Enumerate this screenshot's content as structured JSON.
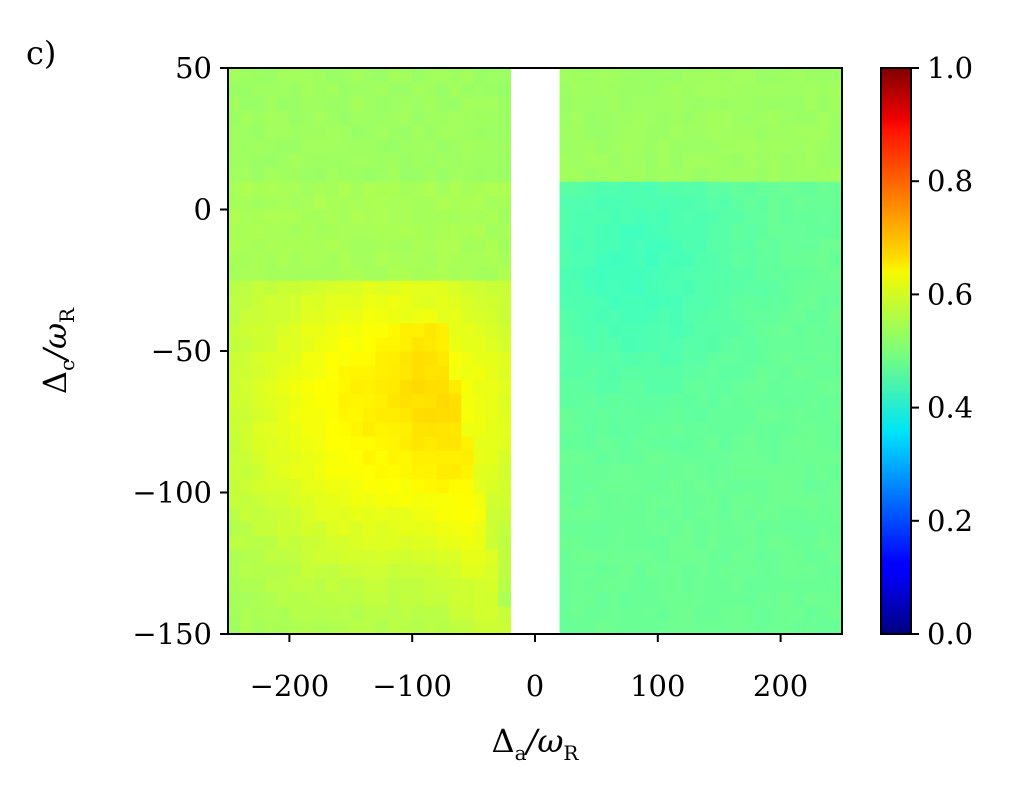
{
  "panel_label": "c)",
  "chart_data": {
    "type": "heatmap",
    "xlabel": {
      "main": "Δ",
      "sub1": "a",
      "mid": "/ω",
      "sub2": "R"
    },
    "ylabel": {
      "main": "Δ",
      "sub1": "c",
      "mid": "/ω",
      "sub2": "R"
    },
    "xlim": [
      -250,
      250
    ],
    "ylim": [
      -150,
      50
    ],
    "xticks": [
      {
        "value": -200,
        "label": "−200"
      },
      {
        "value": -100,
        "label": "−100"
      },
      {
        "value": 0,
        "label": "0"
      },
      {
        "value": 100,
        "label": "100"
      },
      {
        "value": 200,
        "label": "200"
      }
    ],
    "yticks": [
      {
        "value": 50,
        "label": "50"
      },
      {
        "value": 0,
        "label": "0"
      },
      {
        "value": -50,
        "label": "−50"
      },
      {
        "value": -100,
        "label": "−100"
      },
      {
        "value": -150,
        "label": "−150"
      }
    ],
    "colorbar": {
      "colormap": "jet",
      "range": [
        0,
        1
      ],
      "ticks": [
        {
          "value": 0.0,
          "label": "0.0"
        },
        {
          "value": 0.2,
          "label": "0.2"
        },
        {
          "value": 0.4,
          "label": "0.4"
        },
        {
          "value": 0.6,
          "label": "0.6"
        },
        {
          "value": 0.8,
          "label": "0.8"
        },
        {
          "value": 1.0,
          "label": "1.0"
        }
      ]
    },
    "grid": {
      "x_range": [
        -250,
        250
      ],
      "x_step": 10,
      "y_range": [
        -150,
        50
      ],
      "y_step": 5,
      "blank_x_range": [
        -20,
        20
      ],
      "description": "values estimated from colors; white band = no data"
    },
    "value_model": {
      "left_base": 0.53,
      "left_peak": 0.64,
      "left_peak_center": [
        -120,
        -70
      ],
      "left_diag_edge": [
        {
          "y": -150,
          "x": -30
        },
        {
          "y": -50,
          "x": -80
        }
      ],
      "right_top_value": 0.53,
      "right_top_above_y": 10,
      "right_body_value": 0.48,
      "right_dip_value": 0.44,
      "right_dip_center": [
        80,
        -20
      ]
    }
  }
}
